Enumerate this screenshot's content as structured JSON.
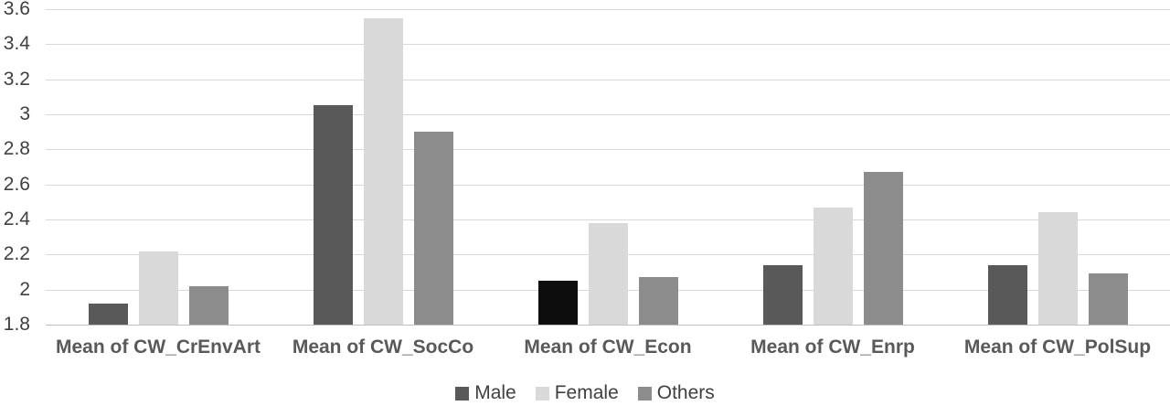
{
  "chart_data": {
    "type": "bar",
    "title": "",
    "xlabel": "",
    "ylabel": "",
    "categories": [
      "Mean of CW_CrEnvArt",
      "Mean of CW_SocCo",
      "Mean of CW_Econ",
      "Mean of CW_Enrp",
      "Mean of CW_PolSup"
    ],
    "series": [
      {
        "name": "Male",
        "color": "#595959",
        "values": [
          1.92,
          3.05,
          2.05,
          2.14,
          2.14
        ],
        "bar_colors": [
          "#595959",
          "#595959",
          "#0d0d0d",
          "#595959",
          "#595959"
        ]
      },
      {
        "name": "Female",
        "color": "#d9d9d9",
        "values": [
          2.22,
          3.55,
          2.38,
          2.47,
          2.44
        ]
      },
      {
        "name": "Others",
        "color": "#8c8c8c",
        "values": [
          2.02,
          2.9,
          2.07,
          2.67,
          2.09
        ]
      }
    ],
    "ylim": [
      1.8,
      3.6
    ],
    "ytick_step": 0.2,
    "yticks": [
      "3.6",
      "3.4",
      "3.2",
      "3",
      "2.8",
      "2.6",
      "2.4",
      "2.2",
      "2",
      "1.8"
    ],
    "grid": true,
    "legend_position": "bottom",
    "colors": {
      "gridline": "#d9d9d9",
      "axis_line": "#bfbfbf",
      "tick_label": "#404040",
      "category_label": "#595959",
      "legend_label": "#404040",
      "background": "#ffffff"
    }
  }
}
